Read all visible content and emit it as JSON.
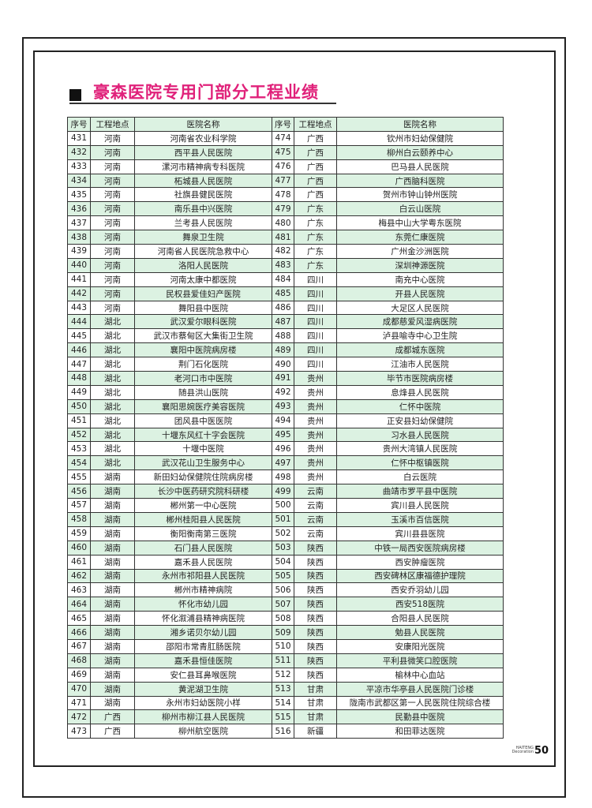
{
  "title": "豪森医院专用门部分工程业绩",
  "headers": [
    "序号",
    "工程地点",
    "医院名称",
    "序号",
    "工程地点",
    "医院名称"
  ],
  "colors": {
    "title": "#e0217a",
    "row_shade": "#dcf2e2"
  },
  "rows": [
    [
      "431",
      "河南",
      "河南省农业科学院",
      "474",
      "广西",
      "钦州市妇幼保健院"
    ],
    [
      "432",
      "河南",
      "西平县人民医院",
      "475",
      "广西",
      "柳州白云颐养中心"
    ],
    [
      "433",
      "河南",
      "漯河市精神病专科医院",
      "476",
      "广西",
      "巴马县人民医院"
    ],
    [
      "434",
      "河南",
      "柘城县人民医院",
      "477",
      "广西",
      "广西脑科医院"
    ],
    [
      "435",
      "河南",
      "社旗县健民医院",
      "478",
      "广西",
      "贺州市钟山钟州医院"
    ],
    [
      "436",
      "河南",
      "南乐县中兴医院",
      "479",
      "广东",
      "白云山医院"
    ],
    [
      "437",
      "河南",
      "兰考县人民医院",
      "480",
      "广东",
      "梅县中山大学粤东医院"
    ],
    [
      "438",
      "河南",
      "舞泉卫生院",
      "481",
      "广东",
      "东莞仁康医院"
    ],
    [
      "439",
      "河南",
      "河南省人民医院急救中心",
      "482",
      "广东",
      "广州金沙洲医院"
    ],
    [
      "440",
      "河南",
      "洛阳人民医院",
      "483",
      "广东",
      "深圳神源医院"
    ],
    [
      "441",
      "河南",
      "河南太康中都医院",
      "484",
      "四川",
      "南充中心医院"
    ],
    [
      "442",
      "河南",
      "民权县爱佳妇产医院",
      "485",
      "四川",
      "开县人民医院"
    ],
    [
      "443",
      "河南",
      "舞阳县中医院",
      "486",
      "四川",
      "大足区人民医院"
    ],
    [
      "444",
      "湖北",
      "武汉爱尔眼科医院",
      "487",
      "四川",
      "成都慈爱风湿病医院"
    ],
    [
      "445",
      "湖北",
      "武汉市蔡甸区大集街卫生院",
      "488",
      "四川",
      "泸县喻寺中心卫生院"
    ],
    [
      "446",
      "湖北",
      "襄阳中医院病房楼",
      "489",
      "四川",
      "成都城东医院"
    ],
    [
      "447",
      "湖北",
      "荆门石化医院",
      "490",
      "四川",
      "江油市人民医院"
    ],
    [
      "448",
      "湖北",
      "老河口市中医院",
      "491",
      "贵州",
      "毕节市医院病房楼"
    ],
    [
      "449",
      "湖北",
      "随县洪山医院",
      "492",
      "贵州",
      "息烽县人民医院"
    ],
    [
      "450",
      "湖北",
      "襄阳思婉医疗美容医院",
      "493",
      "贵州",
      "仁怀中医院"
    ],
    [
      "451",
      "湖北",
      "团风县中医医院",
      "494",
      "贵州",
      "正安县妇幼保健院"
    ],
    [
      "452",
      "湖北",
      "十堰东风红十字会医院",
      "495",
      "贵州",
      "习水县人民医院"
    ],
    [
      "453",
      "湖北",
      "十堰中医院",
      "496",
      "贵州",
      "贵州大湾镇人民医院"
    ],
    [
      "454",
      "湖北",
      "武汉花山卫生服务中心",
      "497",
      "贵州",
      "仁怀中枢镇医院"
    ],
    [
      "455",
      "湖南",
      "新田妇幼保健院住院病房楼",
      "498",
      "贵州",
      "白云医院"
    ],
    [
      "456",
      "湖南",
      "长沙中医药研究院科研楼",
      "499",
      "云南",
      "曲靖市罗平县中医院"
    ],
    [
      "457",
      "湖南",
      "郴州第一中心医院",
      "500",
      "云南",
      "宾川县人民医院"
    ],
    [
      "458",
      "湖南",
      "郴州桂阳县人民医院",
      "501",
      "云南",
      "玉溪市百信医院"
    ],
    [
      "459",
      "湖南",
      "衡阳衡南第三医院",
      "502",
      "云南",
      "宾川县县医院"
    ],
    [
      "460",
      "湖南",
      "石门县人民医院",
      "503",
      "陕西",
      "中铁一局西安医院病房楼"
    ],
    [
      "461",
      "湖南",
      "嘉禾县人民医院",
      "504",
      "陕西",
      "西安肿瘤医院"
    ],
    [
      "462",
      "湖南",
      "永州市祁阳县人民医院",
      "505",
      "陕西",
      "西安碑林区康福德护理院"
    ],
    [
      "463",
      "湖南",
      "郴州市精神病院",
      "506",
      "陕西",
      "西安乔羽幼儿园"
    ],
    [
      "464",
      "湖南",
      "怀化市幼儿园",
      "507",
      "陕西",
      "西安518医院"
    ],
    [
      "465",
      "湖南",
      "怀化溆浦县精神病医院",
      "508",
      "陕西",
      "合阳县人民医院"
    ],
    [
      "466",
      "湖南",
      "湘乡诺贝尔幼儿园",
      "509",
      "陕西",
      "勉县人民医院"
    ],
    [
      "467",
      "湖南",
      "邵阳市常青肛肠医院",
      "510",
      "陕西",
      "安康阳光医院"
    ],
    [
      "468",
      "湖南",
      "嘉禾县恒佳医院",
      "511",
      "陕西",
      "平利县微笑口腔医院"
    ],
    [
      "469",
      "湖南",
      "安仁县耳鼻喉医院",
      "512",
      "陕西",
      "榆林中心血站"
    ],
    [
      "470",
      "湖南",
      "黄泥湖卫生院",
      "513",
      "甘肃",
      "平凉市华亭县人民医院门诊楼"
    ],
    [
      "471",
      "湖南",
      "永州市妇幼医院小样",
      "514",
      "甘肃",
      "陇南市武都区第一人民医院住院综合楼"
    ],
    [
      "472",
      "广西",
      "柳州市柳江县人民医院",
      "515",
      "甘肃",
      "民勤县中医院"
    ],
    [
      "473",
      "广西",
      "柳州航空医院",
      "516",
      "新疆",
      "和田菲达医院"
    ]
  ],
  "footer": {
    "brand_line1": "HAITENG",
    "brand_line2": "Decoration",
    "page_number": "50"
  }
}
